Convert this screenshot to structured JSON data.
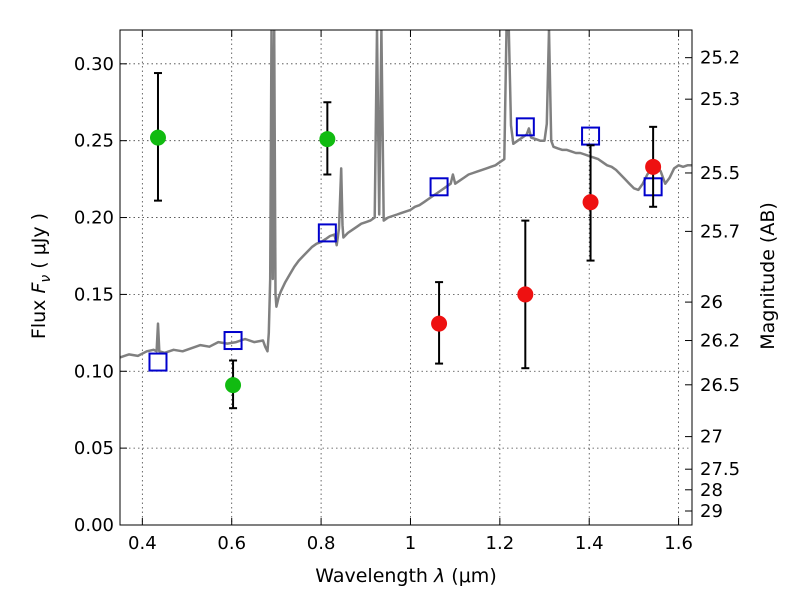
{
  "chart_data": {
    "type": "scatter",
    "xlabel": "Wavelength  λ (μm)",
    "ylabel": "Flux  F_ν  ( μJy )",
    "y2label": "Magnitude (AB)",
    "xlim": [
      0.35,
      1.63
    ],
    "ylim": [
      0.0,
      0.322
    ],
    "grid": true,
    "xticks": [
      0.4,
      0.6,
      0.8,
      1.0,
      1.2,
      1.4,
      1.6
    ],
    "xtick_labels": [
      "0.4",
      "0.6",
      "0.8",
      "1",
      "1.2",
      "1.4",
      "1.6"
    ],
    "yticks": [
      0.0,
      0.05,
      0.1,
      0.15,
      0.2,
      0.25,
      0.3
    ],
    "ytick_labels": [
      "0.00",
      "0.05",
      "0.10",
      "0.15",
      "0.20",
      "0.25",
      "0.30"
    ],
    "right_axis_ticks": [
      {
        "label": "25.2",
        "flux": 0.304
      },
      {
        "label": "25.3",
        "flux": 0.277
      },
      {
        "label": "25.5",
        "flux": 0.229
      },
      {
        "label": "25.7",
        "flux": 0.191
      },
      {
        "label": "26",
        "flux": 0.145
      },
      {
        "label": "26.2",
        "flux": 0.12
      },
      {
        "label": "26.5",
        "flux": 0.0912
      },
      {
        "label": "27",
        "flux": 0.0575
      },
      {
        "label": "27.5",
        "flux": 0.0363
      },
      {
        "label": "28",
        "flux": 0.0229
      },
      {
        "label": "29",
        "flux": 0.0091
      }
    ],
    "series": [
      {
        "kind": "line",
        "color": "#808080",
        "points": [
          [
            0.35,
            0.109
          ],
          [
            0.37,
            0.111
          ],
          [
            0.39,
            0.11
          ],
          [
            0.41,
            0.113
          ],
          [
            0.425,
            0.114
          ],
          [
            0.432,
            0.113
          ],
          [
            0.435,
            0.131
          ],
          [
            0.438,
            0.113
          ],
          [
            0.45,
            0.112
          ],
          [
            0.47,
            0.114
          ],
          [
            0.49,
            0.113
          ],
          [
            0.51,
            0.115
          ],
          [
            0.53,
            0.117
          ],
          [
            0.55,
            0.116
          ],
          [
            0.57,
            0.119
          ],
          [
            0.59,
            0.118
          ],
          [
            0.61,
            0.119
          ],
          [
            0.63,
            0.121
          ],
          [
            0.65,
            0.119
          ],
          [
            0.67,
            0.12
          ],
          [
            0.675,
            0.116
          ],
          [
            0.68,
            0.113
          ],
          [
            0.683,
            0.125
          ],
          [
            0.686,
            0.16
          ],
          [
            0.689,
            0.322
          ],
          [
            0.692,
            0.16
          ],
          [
            0.695,
            0.322
          ],
          [
            0.698,
            0.15
          ],
          [
            0.7,
            0.142
          ],
          [
            0.705,
            0.148
          ],
          [
            0.71,
            0.152
          ],
          [
            0.72,
            0.158
          ],
          [
            0.73,
            0.163
          ],
          [
            0.74,
            0.168
          ],
          [
            0.75,
            0.172
          ],
          [
            0.76,
            0.175
          ],
          [
            0.77,
            0.178
          ],
          [
            0.78,
            0.181
          ],
          [
            0.79,
            0.183
          ],
          [
            0.8,
            0.184
          ],
          [
            0.81,
            0.186
          ],
          [
            0.82,
            0.188
          ],
          [
            0.83,
            0.189
          ],
          [
            0.835,
            0.182
          ],
          [
            0.84,
            0.193
          ],
          [
            0.845,
            0.232
          ],
          [
            0.848,
            0.195
          ],
          [
            0.85,
            0.187
          ],
          [
            0.86,
            0.19
          ],
          [
            0.87,
            0.192
          ],
          [
            0.88,
            0.194
          ],
          [
            0.89,
            0.196
          ],
          [
            0.9,
            0.197
          ],
          [
            0.91,
            0.198
          ],
          [
            0.92,
            0.2
          ],
          [
            0.925,
            0.322
          ],
          [
            0.93,
            0.202
          ],
          [
            0.935,
            0.322
          ],
          [
            0.94,
            0.198
          ],
          [
            0.95,
            0.2
          ],
          [
            0.96,
            0.201
          ],
          [
            0.97,
            0.202
          ],
          [
            0.98,
            0.203
          ],
          [
            0.99,
            0.204
          ],
          [
            1.0,
            0.205
          ],
          [
            1.01,
            0.207
          ],
          [
            1.02,
            0.208
          ],
          [
            1.03,
            0.21
          ],
          [
            1.04,
            0.212
          ],
          [
            1.05,
            0.214
          ],
          [
            1.06,
            0.216
          ],
          [
            1.07,
            0.218
          ],
          [
            1.08,
            0.22
          ],
          [
            1.09,
            0.222
          ],
          [
            1.095,
            0.228
          ],
          [
            1.1,
            0.222
          ],
          [
            1.11,
            0.224
          ],
          [
            1.12,
            0.226
          ],
          [
            1.13,
            0.228
          ],
          [
            1.14,
            0.229
          ],
          [
            1.15,
            0.23
          ],
          [
            1.16,
            0.231
          ],
          [
            1.17,
            0.232
          ],
          [
            1.18,
            0.233
          ],
          [
            1.19,
            0.234
          ],
          [
            1.2,
            0.236
          ],
          [
            1.21,
            0.238
          ],
          [
            1.215,
            0.322
          ],
          [
            1.22,
            0.322
          ],
          [
            1.225,
            0.26
          ],
          [
            1.23,
            0.248
          ],
          [
            1.24,
            0.25
          ],
          [
            1.25,
            0.252
          ],
          [
            1.26,
            0.254
          ],
          [
            1.265,
            0.258
          ],
          [
            1.27,
            0.252
          ],
          [
            1.28,
            0.251
          ],
          [
            1.29,
            0.25
          ],
          [
            1.3,
            0.25
          ],
          [
            1.305,
            0.261
          ],
          [
            1.31,
            0.322
          ],
          [
            1.315,
            0.25
          ],
          [
            1.32,
            0.246
          ],
          [
            1.33,
            0.245
          ],
          [
            1.34,
            0.244
          ],
          [
            1.35,
            0.244
          ],
          [
            1.36,
            0.243
          ],
          [
            1.37,
            0.242
          ],
          [
            1.38,
            0.242
          ],
          [
            1.39,
            0.241
          ],
          [
            1.4,
            0.24
          ],
          [
            1.41,
            0.239
          ],
          [
            1.42,
            0.238
          ],
          [
            1.43,
            0.236
          ],
          [
            1.44,
            0.234
          ],
          [
            1.45,
            0.233
          ],
          [
            1.46,
            0.231
          ],
          [
            1.47,
            0.228
          ],
          [
            1.48,
            0.225
          ],
          [
            1.49,
            0.222
          ],
          [
            1.5,
            0.219
          ],
          [
            1.51,
            0.218
          ],
          [
            1.52,
            0.222
          ],
          [
            1.53,
            0.228
          ],
          [
            1.54,
            0.232
          ],
          [
            1.55,
            0.234
          ],
          [
            1.56,
            0.23
          ],
          [
            1.57,
            0.222
          ],
          [
            1.58,
            0.226
          ],
          [
            1.59,
            0.232
          ],
          [
            1.6,
            0.234
          ],
          [
            1.61,
            0.233
          ],
          [
            1.62,
            0.234
          ],
          [
            1.63,
            0.234
          ]
        ]
      },
      {
        "kind": "open-square",
        "color": "#0000cc",
        "points": [
          [
            0.435,
            0.106
          ],
          [
            0.603,
            0.12
          ],
          [
            0.814,
            0.19
          ],
          [
            1.064,
            0.22
          ],
          [
            1.257,
            0.259
          ],
          [
            1.403,
            0.253
          ],
          [
            1.543,
            0.22
          ]
        ]
      },
      {
        "kind": "errorbar-point",
        "color": "#11bb11",
        "points": [
          {
            "x": 0.435,
            "y": 0.252,
            "yerr_low": 0.211,
            "yerr_high": 0.294
          },
          {
            "x": 0.603,
            "y": 0.091,
            "yerr_low": 0.076,
            "yerr_high": 0.107
          },
          {
            "x": 0.814,
            "y": 0.251,
            "yerr_low": 0.228,
            "yerr_high": 0.275
          }
        ]
      },
      {
        "kind": "errorbar-point",
        "color": "#ee1111",
        "points": [
          {
            "x": 1.064,
            "y": 0.131,
            "yerr_low": 0.105,
            "yerr_high": 0.158
          },
          {
            "x": 1.257,
            "y": 0.15,
            "yerr_low": 0.102,
            "yerr_high": 0.198
          },
          {
            "x": 1.403,
            "y": 0.21,
            "yerr_low": 0.172,
            "yerr_high": 0.247
          },
          {
            "x": 1.543,
            "y": 0.233,
            "yerr_low": 0.207,
            "yerr_high": 0.259
          }
        ]
      }
    ]
  }
}
